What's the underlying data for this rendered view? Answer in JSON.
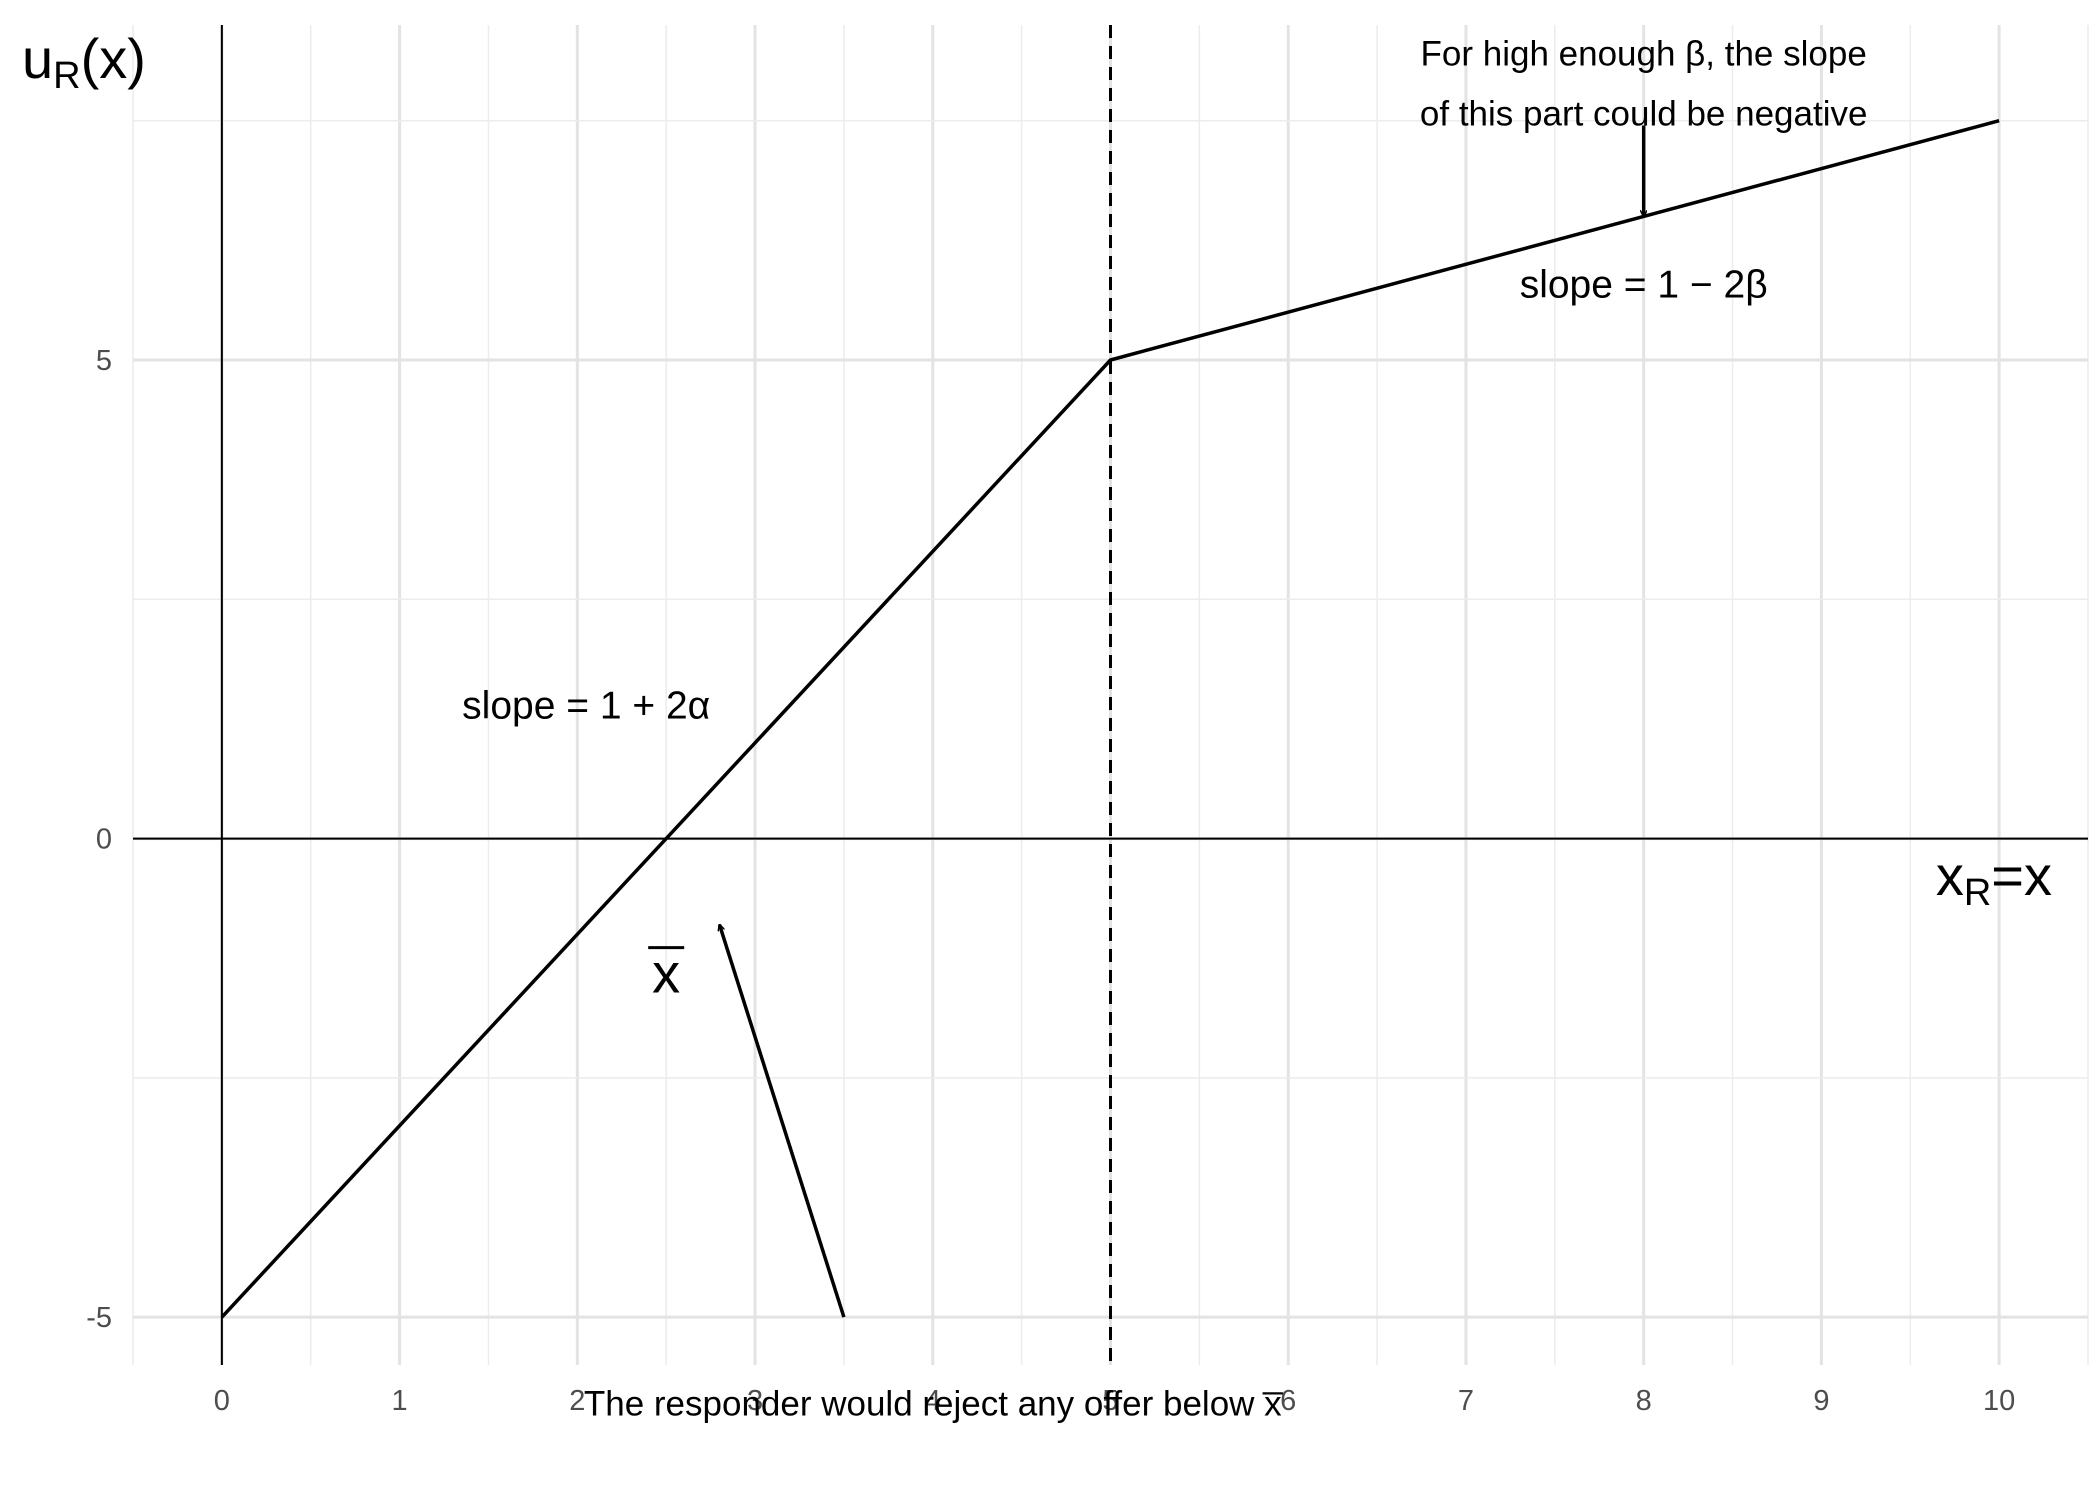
{
  "chart_data": {
    "type": "line",
    "xlim": [
      -0.5,
      10.5
    ],
    "ylim": [
      -5.5,
      8.5
    ],
    "x_ticks": [
      0,
      1,
      2,
      3,
      4,
      5,
      6,
      7,
      8,
      9,
      10
    ],
    "x_tick_labels": [
      "0",
      "1",
      "2",
      "3",
      "4",
      "5",
      "6",
      "7",
      "8",
      "9",
      "10"
    ],
    "y_ticks": [
      -5,
      0,
      5
    ],
    "y_tick_labels": [
      "-5",
      "0",
      "5"
    ],
    "grid": true,
    "legend": "none",
    "ylabel": {
      "main": "u",
      "sub": "R",
      "rest": "(x)"
    },
    "xlabel": {
      "main": "x",
      "sub": "R",
      "rest": "=x"
    },
    "series": [
      {
        "x": [
          0,
          5,
          10
        ],
        "y": [
          -5,
          5,
          7.5
        ],
        "color": "#000000"
      }
    ],
    "vline": {
      "x": 5,
      "style": "dashed",
      "color": "#000000"
    },
    "annotations": {
      "slope_left": {
        "text": "slope = 1 + 2α",
        "x": 2.05,
        "y": 1.4
      },
      "slope_right": {
        "text": "slope = 1 − 2β",
        "x": 8.0,
        "y": 5.8
      },
      "note_top": {
        "lines": [
          "For high enough β, the slope",
          "of this part could be negative"
        ],
        "x": 8.0,
        "y": 8.2,
        "arrow_from": [
          8.0,
          7.45
        ],
        "arrow_to": [
          8.0,
          6.5
        ]
      },
      "xbar_label": {
        "text": "x",
        "x": 2.5,
        "y": -1.4
      },
      "reject_note": {
        "text": "The responder would reject any offer below x̅",
        "x": 4.0,
        "y": -5.9,
        "arrow_from": [
          3.5,
          -5.0
        ],
        "arrow_to": [
          2.8,
          -0.9
        ]
      }
    }
  }
}
